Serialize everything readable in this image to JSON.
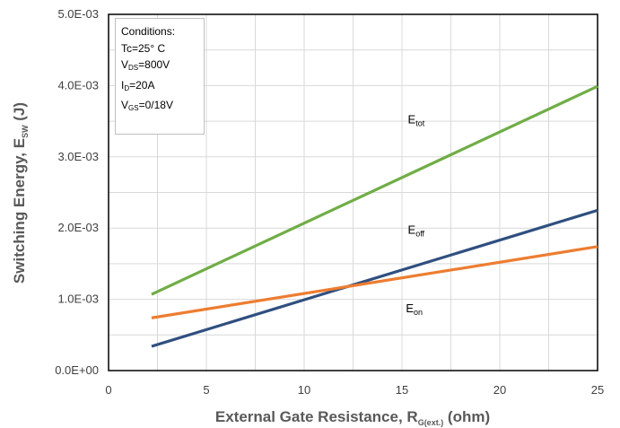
{
  "chart_data": {
    "type": "line",
    "title": "",
    "xlabel": {
      "main": "External Gate Resistance, R",
      "sub": "G(ext.)",
      "tail": " (ohm)"
    },
    "ylabel": {
      "main": "Switching Energy, E",
      "sub": "SW",
      "tail": " (J)"
    },
    "xlim": [
      0,
      25
    ],
    "ylim": [
      0,
      0.005
    ],
    "x_ticks": [
      "0",
      "5",
      "10",
      "15",
      "20",
      "25"
    ],
    "y_ticks": [
      "0.0E+00",
      "1.0E-03",
      "2.0E-03",
      "3.0E-03",
      "4.0E-03",
      "5.0E-03"
    ],
    "grid": true,
    "series": [
      {
        "name": "E_tot",
        "label_main": "E",
        "label_sub": "tot",
        "color": "#70ad47",
        "x": [
          2.2,
          25
        ],
        "y": [
          0.00107,
          0.00399
        ]
      },
      {
        "name": "E_off",
        "label_main": "E",
        "label_sub": "off",
        "color": "#2f4f7f",
        "x": [
          2.2,
          25
        ],
        "y": [
          0.00034,
          0.00225
        ]
      },
      {
        "name": "E_on",
        "label_main": "E",
        "label_sub": "on",
        "color": "#ed7d31",
        "x": [
          2.2,
          25
        ],
        "y": [
          0.00074,
          0.00174
        ]
      }
    ],
    "annotation": {
      "title": "Conditions:",
      "lines": [
        {
          "main": "Tc=25° C",
          "sub": "",
          "tail": ""
        },
        {
          "main": "V",
          "sub": "DS",
          "tail": "=800V"
        },
        {
          "main": "I",
          "sub": "D",
          "tail": "=20A"
        },
        {
          "main": "V",
          "sub": "GS",
          "tail": "=0/18V"
        }
      ]
    }
  }
}
